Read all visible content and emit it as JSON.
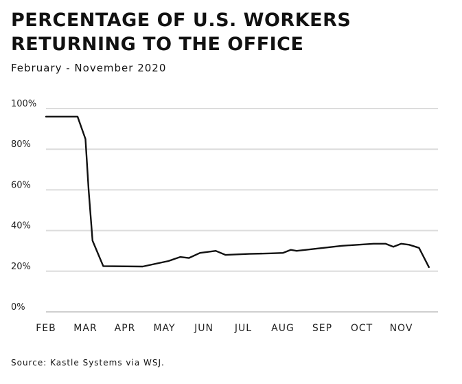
{
  "chart_data": {
    "type": "line",
    "title": "Percentage of U.S. workers returning to the office",
    "subtitle": "February - November 2020",
    "source": "Source: Kastle Systems via WSJ.",
    "y_ticks": [
      "0%",
      "20%",
      "40%",
      "60%",
      "80%",
      "100%"
    ],
    "ylim": [
      0,
      100
    ],
    "x_ticks": [
      "FEB",
      "MAR",
      "APR",
      "MAY",
      "JUN",
      "JUL",
      "AUG",
      "SEP",
      "OCT",
      "NOV"
    ],
    "x_unit": "months since Feb 1",
    "xlim": [
      0,
      10.2
    ],
    "grid": true,
    "series": [
      {
        "color": "#111111",
        "points": [
          [
            0,
            96
          ],
          [
            0.8,
            96
          ],
          [
            1.0,
            85
          ],
          [
            1.08,
            60
          ],
          [
            1.18,
            35
          ],
          [
            1.45,
            22.5
          ],
          [
            2.45,
            22.3
          ],
          [
            3.1,
            25
          ],
          [
            3.4,
            27
          ],
          [
            3.62,
            26.5
          ],
          [
            3.9,
            29
          ],
          [
            4.3,
            30
          ],
          [
            4.55,
            28
          ],
          [
            5.15,
            28.5
          ],
          [
            5.7,
            28.8
          ],
          [
            6.0,
            29
          ],
          [
            6.2,
            30.5
          ],
          [
            6.35,
            30
          ],
          [
            7.5,
            32.5
          ],
          [
            8.3,
            33.5
          ],
          [
            8.6,
            33.5
          ],
          [
            8.8,
            32
          ],
          [
            9.0,
            33.5
          ],
          [
            9.2,
            33
          ],
          [
            9.45,
            31.5
          ],
          [
            9.7,
            22
          ]
        ]
      }
    ]
  }
}
